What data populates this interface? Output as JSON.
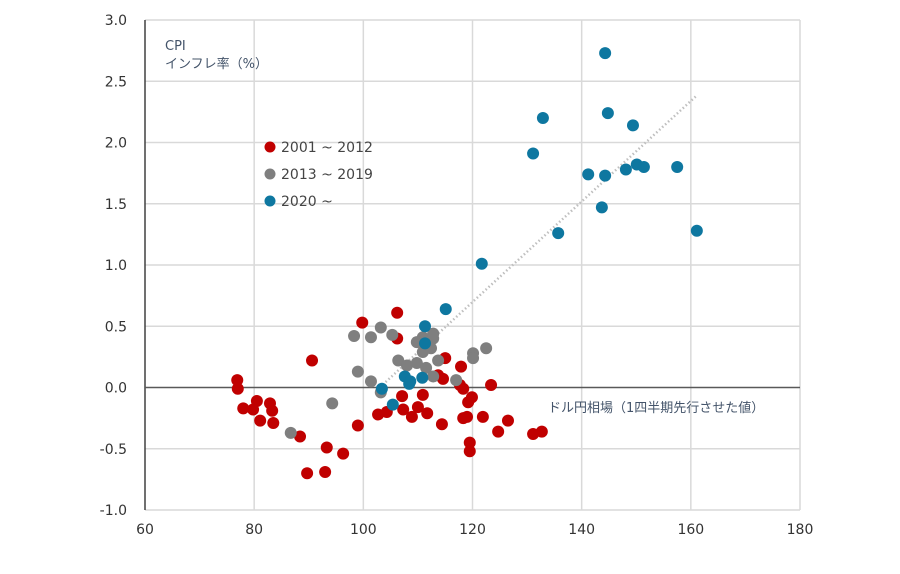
{
  "chart_data": {
    "type": "scatter",
    "title": "",
    "ylabel_line1": "CPI",
    "ylabel_line2": "インフレ率（%）",
    "xlabel": "ドル円相場（1四半期先行させた値）",
    "xlim": [
      60,
      180
    ],
    "ylim": [
      -1.0,
      3.0
    ],
    "xticks": [
      "60",
      "80",
      "100",
      "120",
      "140",
      "160",
      "180"
    ],
    "yticks": [
      "3.0",
      "2.5",
      "2.0",
      "1.5",
      "1.0",
      "0.5",
      "0.0",
      "-0.5",
      "-1.0"
    ],
    "grid": true,
    "legend_position": "upper-left inside",
    "trendline": {
      "style": "dotted",
      "color": "#bfbfbf",
      "from": [
        103,
        0.0
      ],
      "to": [
        161,
        2.38
      ]
    },
    "series": [
      {
        "name": "2001 ~ 2012",
        "color": "#c00000",
        "points": [
          [
            99.8,
            0.53
          ],
          [
            106.2,
            0.61
          ],
          [
            106.2,
            0.4
          ],
          [
            90.6,
            0.22
          ],
          [
            76.9,
            0.06
          ],
          [
            77.0,
            -0.01
          ],
          [
            80.5,
            -0.11
          ],
          [
            78.0,
            -0.17
          ],
          [
            79.8,
            -0.18
          ],
          [
            82.9,
            -0.13
          ],
          [
            83.3,
            -0.19
          ],
          [
            81.1,
            -0.27
          ],
          [
            83.5,
            -0.29
          ],
          [
            88.4,
            -0.4
          ],
          [
            93.3,
            -0.49
          ],
          [
            96.3,
            -0.54
          ],
          [
            93.0,
            -0.69
          ],
          [
            89.7,
            -0.7
          ],
          [
            99.0,
            -0.31
          ],
          [
            102.7,
            -0.22
          ],
          [
            104.3,
            -0.2
          ],
          [
            107.1,
            -0.07
          ],
          [
            107.3,
            -0.18
          ],
          [
            108.9,
            -0.24
          ],
          [
            110.0,
            -0.16
          ],
          [
            110.9,
            -0.06
          ],
          [
            111.7,
            -0.21
          ],
          [
            114.4,
            -0.3
          ],
          [
            115.0,
            0.24
          ],
          [
            117.9,
            0.17
          ],
          [
            114.6,
            0.07
          ],
          [
            113.7,
            0.1
          ],
          [
            117.7,
            0.02
          ],
          [
            118.3,
            -0.01
          ],
          [
            119.9,
            -0.08
          ],
          [
            119.2,
            -0.12
          ],
          [
            118.3,
            -0.25
          ],
          [
            119.0,
            -0.24
          ],
          [
            121.9,
            -0.24
          ],
          [
            123.4,
            0.02
          ],
          [
            119.5,
            -0.45
          ],
          [
            119.5,
            -0.52
          ],
          [
            124.7,
            -0.36
          ],
          [
            126.5,
            -0.27
          ],
          [
            131.1,
            -0.38
          ],
          [
            132.7,
            -0.36
          ]
        ]
      },
      {
        "name": "2013 ~ 2019",
        "color": "#7f7f7f",
        "points": [
          [
            98.3,
            0.42
          ],
          [
            101.4,
            0.41
          ],
          [
            103.2,
            0.49
          ],
          [
            105.3,
            0.43
          ],
          [
            99.0,
            0.13
          ],
          [
            101.4,
            0.05
          ],
          [
            103.2,
            -0.04
          ],
          [
            94.3,
            -0.13
          ],
          [
            86.7,
            -0.37
          ],
          [
            106.4,
            0.22
          ],
          [
            108.0,
            0.18
          ],
          [
            109.8,
            0.2
          ],
          [
            111.5,
            0.16
          ],
          [
            112.8,
            0.09
          ],
          [
            113.7,
            0.22
          ],
          [
            109.8,
            0.37
          ],
          [
            110.9,
            0.41
          ],
          [
            112.8,
            0.44
          ],
          [
            112.8,
            0.4
          ],
          [
            110.9,
            0.29
          ],
          [
            112.4,
            0.32
          ],
          [
            117.0,
            0.06
          ],
          [
            120.1,
            0.28
          ],
          [
            120.1,
            0.24
          ],
          [
            122.5,
            0.32
          ]
        ]
      },
      {
        "name": "2020 ~",
        "color": "#0e77a0",
        "points": [
          [
            144.3,
            2.73
          ],
          [
            132.9,
            2.2
          ],
          [
            144.8,
            2.24
          ],
          [
            149.4,
            2.14
          ],
          [
            131.1,
            1.91
          ],
          [
            141.2,
            1.74
          ],
          [
            144.3,
            1.73
          ],
          [
            148.1,
            1.78
          ],
          [
            150.1,
            1.82
          ],
          [
            151.4,
            1.8
          ],
          [
            157.5,
            1.8
          ],
          [
            143.7,
            1.47
          ],
          [
            135.7,
            1.26
          ],
          [
            161.1,
            1.28
          ],
          [
            121.7,
            1.01
          ],
          [
            115.1,
            0.64
          ],
          [
            111.3,
            0.5
          ],
          [
            111.3,
            0.36
          ],
          [
            103.4,
            -0.01
          ],
          [
            105.4,
            -0.14
          ],
          [
            107.6,
            0.09
          ],
          [
            108.6,
            0.05
          ],
          [
            108.4,
            0.03
          ],
          [
            110.8,
            0.08
          ]
        ]
      }
    ]
  }
}
